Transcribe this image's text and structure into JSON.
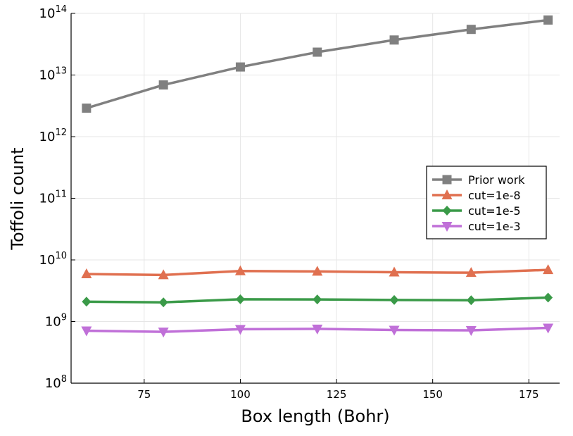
{
  "chart_data": {
    "type": "line",
    "xlabel": "Box length (Bohr)",
    "ylabel": "Toffoli count",
    "y_scale": "log",
    "xlim": [
      56,
      183
    ],
    "ylim": [
      100000000.0,
      100000000000000.0
    ],
    "x_ticks": [
      75,
      100,
      125,
      150,
      175
    ],
    "y_ticks": [
      {
        "base": "10",
        "exp": "8",
        "value": 100000000.0
      },
      {
        "base": "10",
        "exp": "9",
        "value": 1000000000.0
      },
      {
        "base": "10",
        "exp": "10",
        "value": 10000000000.0
      },
      {
        "base": "10",
        "exp": "11",
        "value": 100000000000.0
      },
      {
        "base": "10",
        "exp": "12",
        "value": 1000000000000.0
      },
      {
        "base": "10",
        "exp": "13",
        "value": 10000000000000.0
      },
      {
        "base": "10",
        "exp": "14",
        "value": 100000000000000.0
      }
    ],
    "grid": true,
    "legend_position": "right",
    "x": [
      60,
      80,
      100,
      120,
      140,
      160,
      180
    ],
    "series": [
      {
        "name": "Prior work",
        "color": "#808080",
        "marker": "square",
        "values": [
          2900000000000.0,
          6900000000000.0,
          13500000000000.0,
          23500000000000.0,
          37000000000000.0,
          55000000000000.0,
          78000000000000.0
        ]
      },
      {
        "name": "cut=1e-8",
        "color": "#e07050",
        "marker": "triangle-up",
        "values": [
          5900000000.0,
          5700000000.0,
          6600000000.0,
          6500000000.0,
          6300000000.0,
          6200000000.0,
          6900000000.0
        ]
      },
      {
        "name": "cut=1e-5",
        "color": "#3a9a48",
        "marker": "diamond",
        "values": [
          2100000000.0,
          2050000000.0,
          2300000000.0,
          2280000000.0,
          2240000000.0,
          2220000000.0,
          2450000000.0
        ]
      },
      {
        "name": "cut=1e-3",
        "color": "#c070d8",
        "marker": "triangle-down",
        "values": [
          710000000.0,
          680000000.0,
          750000000.0,
          760000000.0,
          730000000.0,
          720000000.0,
          790000000.0
        ]
      }
    ]
  }
}
